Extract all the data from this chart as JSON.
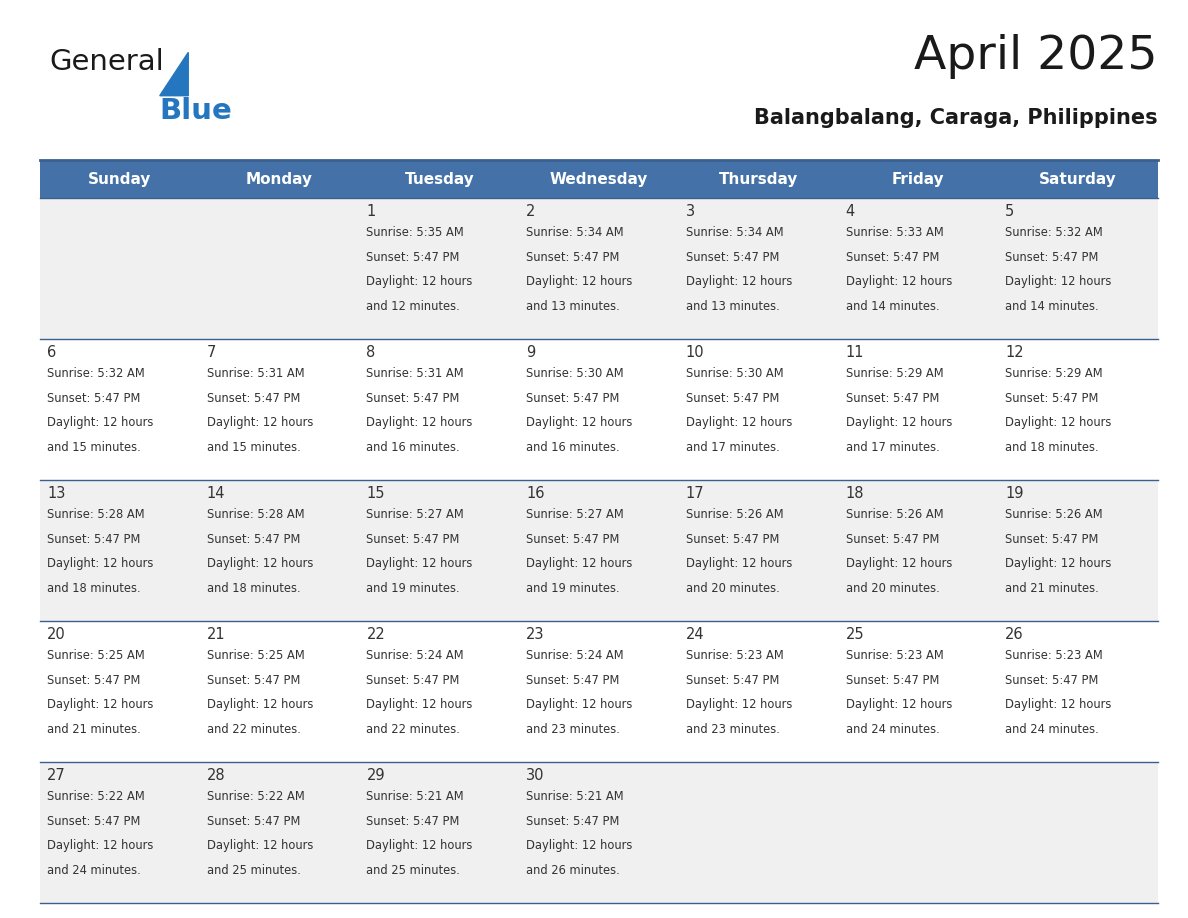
{
  "title": "April 2025",
  "subtitle": "Balangbalang, Caraga, Philippines",
  "days_of_week": [
    "Sunday",
    "Monday",
    "Tuesday",
    "Wednesday",
    "Thursday",
    "Friday",
    "Saturday"
  ],
  "header_bg": "#4472A8",
  "header_text": "#FFFFFF",
  "cell_bg_odd": "#F0F0F0",
  "cell_bg_even": "#FFFFFF",
  "border_color": "#3A6090",
  "text_color": "#333333",
  "title_color": "#1a1a1a",
  "subtitle_color": "#1a1a1a",
  "weeks": [
    [
      {
        "day": "",
        "sunrise": "",
        "sunset": "",
        "daylight": ""
      },
      {
        "day": "",
        "sunrise": "",
        "sunset": "",
        "daylight": ""
      },
      {
        "day": "1",
        "sunrise": "5:35 AM",
        "sunset": "5:47 PM",
        "daylight": "12 hours and 12 minutes."
      },
      {
        "day": "2",
        "sunrise": "5:34 AM",
        "sunset": "5:47 PM",
        "daylight": "12 hours and 13 minutes."
      },
      {
        "day": "3",
        "sunrise": "5:34 AM",
        "sunset": "5:47 PM",
        "daylight": "12 hours and 13 minutes."
      },
      {
        "day": "4",
        "sunrise": "5:33 AM",
        "sunset": "5:47 PM",
        "daylight": "12 hours and 14 minutes."
      },
      {
        "day": "5",
        "sunrise": "5:32 AM",
        "sunset": "5:47 PM",
        "daylight": "12 hours and 14 minutes."
      }
    ],
    [
      {
        "day": "6",
        "sunrise": "5:32 AM",
        "sunset": "5:47 PM",
        "daylight": "12 hours and 15 minutes."
      },
      {
        "day": "7",
        "sunrise": "5:31 AM",
        "sunset": "5:47 PM",
        "daylight": "12 hours and 15 minutes."
      },
      {
        "day": "8",
        "sunrise": "5:31 AM",
        "sunset": "5:47 PM",
        "daylight": "12 hours and 16 minutes."
      },
      {
        "day": "9",
        "sunrise": "5:30 AM",
        "sunset": "5:47 PM",
        "daylight": "12 hours and 16 minutes."
      },
      {
        "day": "10",
        "sunrise": "5:30 AM",
        "sunset": "5:47 PM",
        "daylight": "12 hours and 17 minutes."
      },
      {
        "day": "11",
        "sunrise": "5:29 AM",
        "sunset": "5:47 PM",
        "daylight": "12 hours and 17 minutes."
      },
      {
        "day": "12",
        "sunrise": "5:29 AM",
        "sunset": "5:47 PM",
        "daylight": "12 hours and 18 minutes."
      }
    ],
    [
      {
        "day": "13",
        "sunrise": "5:28 AM",
        "sunset": "5:47 PM",
        "daylight": "12 hours and 18 minutes."
      },
      {
        "day": "14",
        "sunrise": "5:28 AM",
        "sunset": "5:47 PM",
        "daylight": "12 hours and 18 minutes."
      },
      {
        "day": "15",
        "sunrise": "5:27 AM",
        "sunset": "5:47 PM",
        "daylight": "12 hours and 19 minutes."
      },
      {
        "day": "16",
        "sunrise": "5:27 AM",
        "sunset": "5:47 PM",
        "daylight": "12 hours and 19 minutes."
      },
      {
        "day": "17",
        "sunrise": "5:26 AM",
        "sunset": "5:47 PM",
        "daylight": "12 hours and 20 minutes."
      },
      {
        "day": "18",
        "sunrise": "5:26 AM",
        "sunset": "5:47 PM",
        "daylight": "12 hours and 20 minutes."
      },
      {
        "day": "19",
        "sunrise": "5:26 AM",
        "sunset": "5:47 PM",
        "daylight": "12 hours and 21 minutes."
      }
    ],
    [
      {
        "day": "20",
        "sunrise": "5:25 AM",
        "sunset": "5:47 PM",
        "daylight": "12 hours and 21 minutes."
      },
      {
        "day": "21",
        "sunrise": "5:25 AM",
        "sunset": "5:47 PM",
        "daylight": "12 hours and 22 minutes."
      },
      {
        "day": "22",
        "sunrise": "5:24 AM",
        "sunset": "5:47 PM",
        "daylight": "12 hours and 22 minutes."
      },
      {
        "day": "23",
        "sunrise": "5:24 AM",
        "sunset": "5:47 PM",
        "daylight": "12 hours and 23 minutes."
      },
      {
        "day": "24",
        "sunrise": "5:23 AM",
        "sunset": "5:47 PM",
        "daylight": "12 hours and 23 minutes."
      },
      {
        "day": "25",
        "sunrise": "5:23 AM",
        "sunset": "5:47 PM",
        "daylight": "12 hours and 24 minutes."
      },
      {
        "day": "26",
        "sunrise": "5:23 AM",
        "sunset": "5:47 PM",
        "daylight": "12 hours and 24 minutes."
      }
    ],
    [
      {
        "day": "27",
        "sunrise": "5:22 AM",
        "sunset": "5:47 PM",
        "daylight": "12 hours and 24 minutes."
      },
      {
        "day": "28",
        "sunrise": "5:22 AM",
        "sunset": "5:47 PM",
        "daylight": "12 hours and 25 minutes."
      },
      {
        "day": "29",
        "sunrise": "5:21 AM",
        "sunset": "5:47 PM",
        "daylight": "12 hours and 25 minutes."
      },
      {
        "day": "30",
        "sunrise": "5:21 AM",
        "sunset": "5:47 PM",
        "daylight": "12 hours and 26 minutes."
      },
      {
        "day": "",
        "sunrise": "",
        "sunset": "",
        "daylight": ""
      },
      {
        "day": "",
        "sunrise": "",
        "sunset": "",
        "daylight": ""
      },
      {
        "day": "",
        "sunrise": "",
        "sunset": "",
        "daylight": ""
      }
    ]
  ],
  "logo_text_general": "General",
  "logo_text_blue": "Blue",
  "logo_color_general": "#1a1a1a",
  "logo_color_blue": "#2477BE",
  "logo_triangle_color": "#2477BE",
  "fig_width": 11.88,
  "fig_height": 9.18,
  "dpi": 100
}
